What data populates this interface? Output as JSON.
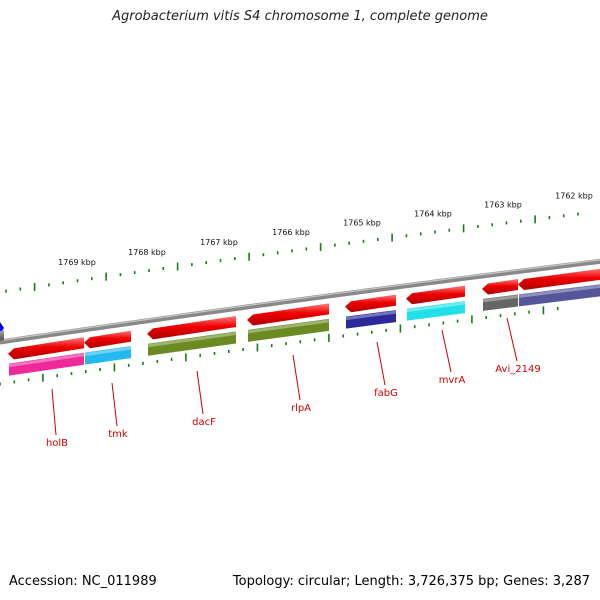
{
  "title": "Agrobacterium vitis S4 chromosome 1, complete genome",
  "footer": {
    "accession": "Accession: NC_011989",
    "summary": "Topology: circular; Length: 3,726,375 bp; Genes: 3,287"
  },
  "scale_labels": [
    "1769 kbp",
    "1768 kbp",
    "1767 kbp",
    "1766 kbp",
    "1765 kbp",
    "1764 kbp",
    "1763 kbp",
    "1762 kbp"
  ],
  "genes": [
    "holB",
    "tmk",
    "dacF",
    "rlpA",
    "fabG",
    "mvrA",
    "Avi_2149"
  ],
  "colors": {
    "gene": "#ee0000",
    "backbone": "#888888",
    "tick": "#1a7a1a",
    "label": "#cc0000",
    "holB_cog": "#ee2a9a",
    "tmk_cog": "#22b8f0",
    "dacF_cog": "#6b8a22",
    "rlpA_cog": "#6b8a22",
    "fabG_cog": "#2a2a9a",
    "mvrA_cog": "#22e0e8",
    "Avi_2149_cog": "#555599"
  }
}
